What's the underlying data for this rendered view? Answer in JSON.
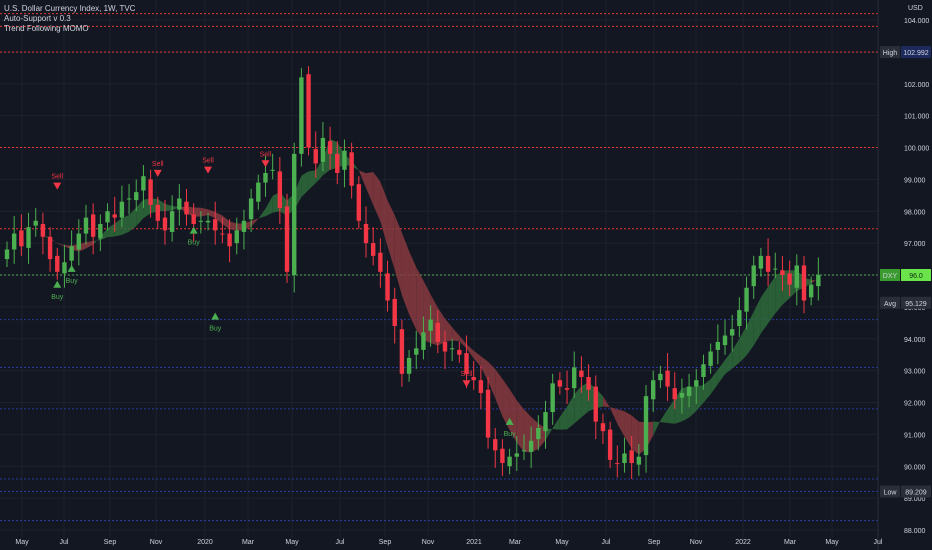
{
  "legend": {
    "symbol_line": "U.S. Dollar Currency Index, 1W, TVC",
    "indicator1": "Auto-Support v 0.3",
    "indicator2": "Trend Following MOMO"
  },
  "currency_label": "USD",
  "colors": {
    "background": "#131722",
    "up": "#4caf50",
    "down": "#f23645",
    "band_up": "#2e6b3a",
    "band_down": "#8a3a40",
    "red_line": "#e53935",
    "blue_line": "#2a3a9e",
    "green_line": "#4caf50",
    "text": "#d1d4dc",
    "badge": "#2a2e39"
  },
  "chart_data": {
    "type": "candlestick",
    "title": "U.S. Dollar Currency Index, 1W, TVC",
    "x_axis": {
      "ticks": [
        "May",
        "Jul",
        "Sep",
        "Nov",
        "2020",
        "Mar",
        "May",
        "Jul",
        "Sep",
        "Nov",
        "2021",
        "Mar",
        "May",
        "Jul",
        "Sep",
        "Nov",
        "2022",
        "Mar",
        "May",
        "Jul"
      ]
    },
    "y_axis": {
      "range": [
        88,
        104.5
      ],
      "ticks": [
        "88.000",
        "89.000",
        "90.000",
        "91.000",
        "92.000",
        "93.000",
        "94.000",
        "95.000",
        "96.000",
        "97.000",
        "98.000",
        "99.000",
        "100.000",
        "101.000",
        "102.000",
        "103.000",
        "104.000"
      ]
    },
    "price_badges": {
      "high": {
        "label": "High",
        "value": "102.992",
        "price": 102.992
      },
      "avg": {
        "label": "Avg",
        "value": "95.129",
        "price": 95.129
      },
      "low": {
        "label": "Low",
        "value": "89.209",
        "price": 89.209
      },
      "current": {
        "label": "DXY",
        "value": "96.0",
        "price": 96.0
      }
    },
    "resistance_lines_red": [
      104.2,
      103.8,
      102.992,
      100.0,
      97.45
    ],
    "support_lines_blue": [
      94.6,
      93.1,
      91.8,
      89.6,
      89.209,
      88.3
    ],
    "current_line_green": 96.0,
    "signals": [
      {
        "type": "Sell",
        "label": "Sell",
        "week": 7,
        "price": 98.9
      },
      {
        "type": "Buy",
        "label": "Buy",
        "week": 7,
        "price": 95.6
      },
      {
        "type": "Buy",
        "label": "Buy",
        "week": 9,
        "price": 96.1
      },
      {
        "type": "Sell",
        "label": "Sell",
        "week": 21,
        "price": 99.3
      },
      {
        "type": "Buy",
        "label": "Buy",
        "week": 26,
        "price": 97.3
      },
      {
        "type": "Sell",
        "label": "Sell",
        "week": 28,
        "price": 99.4
      },
      {
        "type": "Buy",
        "label": "Buy",
        "week": 29,
        "price": 94.6
      },
      {
        "type": "Sell",
        "label": "Sell",
        "week": 36,
        "price": 99.6
      },
      {
        "type": "Sell",
        "label": "Sell",
        "week": 64,
        "price": 92.7
      },
      {
        "type": "Buy",
        "label": "Buy",
        "week": 70,
        "price": 91.3
      }
    ],
    "close": [
      96.8,
      97.3,
      96.9,
      97.5,
      97.7,
      97.2,
      96.5,
      96.1,
      96.4,
      96.9,
      97.3,
      97.8,
      97.2,
      97.6,
      98.0,
      97.8,
      98.3,
      98.4,
      98.6,
      99.1,
      98.2,
      97.7,
      97.4,
      98.0,
      98.4,
      97.9,
      97.6,
      97.7,
      97.7,
      97.4,
      97.3,
      96.9,
      97.4,
      97.7,
      98.4,
      98.9,
      99.2,
      99.3,
      98.1,
      96.1,
      99.8,
      102.2,
      100.0,
      99.5,
      100.3,
      99.8,
      99.2,
      99.9,
      98.8,
      97.7,
      97.0,
      96.6,
      96.1,
      95.2,
      94.4,
      92.9,
      93.4,
      93.7,
      94.2,
      94.6,
      93.9,
      93.6,
      93.7,
      93.5,
      92.9,
      92.7,
      92.3,
      90.9,
      90.5,
      90.1,
      90.3,
      90.4,
      90.5,
      90.8,
      91.2,
      91.7,
      92.6,
      92.5,
      92.4,
      93.1,
      92.8,
      92.4,
      91.4,
      91.1,
      90.2,
      90.1,
      90.4,
      90.1,
      90.3,
      92.2,
      92.7,
      92.9,
      92.5,
      92.1,
      92.3,
      92.5,
      92.7,
      93.2,
      93.6,
      93.9,
      94.1,
      94.3,
      94.9,
      95.6,
      96.3,
      96.6,
      96.1,
      96.2,
      96.0,
      95.7,
      96.3,
      95.2,
      95.7,
      96.0
    ]
  }
}
